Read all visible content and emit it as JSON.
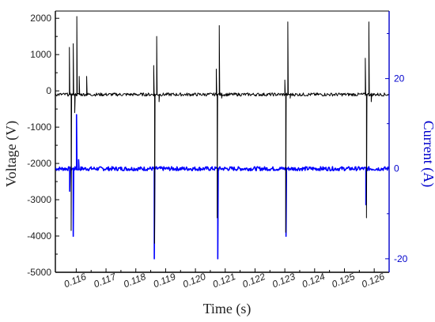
{
  "colors": {
    "voltage": "#000000",
    "current": "#0000ff",
    "axis_left": "#000000",
    "axis_right": "#0000cc"
  },
  "chart_data": {
    "type": "line",
    "xlabel": "Time (s)",
    "ylabel": "Voltage (V)",
    "y2label": "Current (A)",
    "xlim": [
      0.1153,
      0.1265
    ],
    "ylim": [
      -5000,
      2200
    ],
    "y2lim": [
      -23,
      35
    ],
    "grid": false,
    "x_ticks": [
      "0.116",
      "0.117",
      "0.118",
      "0.119",
      "0.120",
      "0.121",
      "0.122",
      "0.123",
      "0.124",
      "0.125",
      "0.126"
    ],
    "y_ticks": [
      "2000",
      "1000",
      "0",
      "-1000",
      "-2000",
      "-3000",
      "-4000",
      "-5000"
    ],
    "y2_ticks": [
      "20",
      "0",
      "-20"
    ],
    "series": [
      {
        "axis": "left",
        "baseline": -100,
        "events": [
          {
            "t": 0.11585,
            "spikes": [
              [
                0.11577,
                1200
              ],
              [
                0.11583,
                -3850
              ],
              [
                0.1159,
                1300
              ],
              [
                0.11595,
                -600
              ],
              [
                0.11602,
                2050
              ],
              [
                0.1161,
                400
              ],
              [
                0.11635,
                400
              ]
            ]
          },
          {
            "t": 0.11865,
            "spikes": [
              [
                0.1186,
                700
              ],
              [
                0.11863,
                -4200
              ],
              [
                0.1187,
                1500
              ],
              [
                0.11878,
                -300
              ]
            ]
          },
          {
            "t": 0.12078,
            "spikes": [
              [
                0.1207,
                600
              ],
              [
                0.12073,
                -3500
              ],
              [
                0.1208,
                1800
              ],
              [
                0.12088,
                -200
              ]
            ]
          },
          {
            "t": 0.12308,
            "spikes": [
              [
                0.123,
                300
              ],
              [
                0.12303,
                -3900
              ],
              [
                0.1231,
                1900
              ],
              [
                0.12318,
                -200
              ]
            ]
          },
          {
            "t": 0.12582,
            "spikes": [
              [
                0.1257,
                900
              ],
              [
                0.12574,
                -3500
              ],
              [
                0.12582,
                1900
              ],
              [
                0.1259,
                -300
              ]
            ]
          }
        ]
      },
      {
        "axis": "right",
        "baseline": 0,
        "events": [
          {
            "t": 0.11585,
            "spikes": [
              [
                0.11578,
                -5
              ],
              [
                0.1159,
                -15
              ],
              [
                0.11601,
                12
              ],
              [
                0.11608,
                2
              ]
            ]
          },
          {
            "t": 0.11865,
            "spikes": [
              [
                0.11862,
                -20
              ]
            ]
          },
          {
            "t": 0.12078,
            "spikes": [
              [
                0.12075,
                -20
              ]
            ]
          },
          {
            "t": 0.12308,
            "spikes": [
              [
                0.12304,
                -15
              ]
            ]
          },
          {
            "t": 0.12582,
            "spikes": [
              [
                0.12572,
                -8
              ]
            ]
          }
        ]
      }
    ]
  }
}
